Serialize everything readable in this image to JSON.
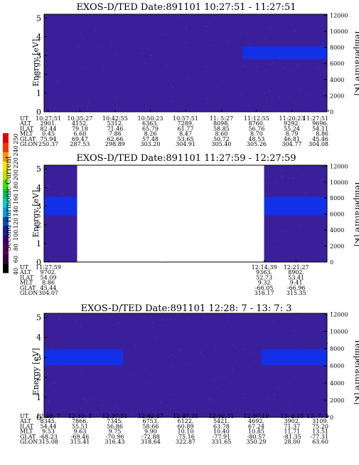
{
  "colorbar": {
    "label": "Second Harmonic Current",
    "ticks": [
      "40",
      "60",
      "80",
      "100",
      "120",
      "140",
      "160",
      "180",
      "200",
      "220",
      "240",
      "250"
    ],
    "colors": [
      "#000000",
      "#3a003a",
      "#5a005a",
      "#3c0078",
      "#1a2090",
      "#0050c8",
      "#00a0e0",
      "#00d0c0",
      "#00c060",
      "#40e000",
      "#c0e000",
      "#ffe000",
      "#ff9000",
      "#ff3000",
      "#e00000"
    ]
  },
  "panels": [
    {
      "title": "EXOS-D/TED   Date:891101  10:27:51 - 11:27:51",
      "ylabel": "Energy [eV]",
      "y2label": "Temperature [K]",
      "yticks": [
        "0",
        "1",
        "2",
        "3",
        "4",
        "5"
      ],
      "y2ticks": [
        "0",
        "2000",
        "4000",
        "6000",
        "8000",
        "10000",
        "12000"
      ],
      "rows": [
        {
          "label": "UT",
          "values": [
            "10:27:51",
            "10:35:27",
            "10:42:55",
            "10:50:23",
            "10:57:51",
            "11: 5:27",
            "11:12:55",
            "11:20:23",
            "11:27:51"
          ]
        },
        {
          "label": "ALT",
          "values": [
            "2901.",
            "4152.",
            "5312.",
            "6363.",
            "7289.",
            "8098.",
            "8760.",
            "9292.",
            "9696."
          ]
        },
        {
          "label": "ILAT",
          "values": [
            "82.44",
            "79.18",
            "71.46",
            "65.79",
            "61.77",
            "58.85",
            "56.76",
            "55.24",
            "54.11"
          ]
        },
        {
          "label": "MLT",
          "values": [
            "0.45",
            "6.60",
            "7.86",
            "8.26",
            "8.47",
            "8.60",
            "8.70",
            "8.79",
            "8.86"
          ]
        },
        {
          "label": "GLAT",
          "values": [
            "75.94",
            "69.47",
            "62.66",
            "57.48",
            "53.65",
            "50.72",
            "48.53",
            "46.81",
            "45.46"
          ]
        },
        {
          "label": "GLON",
          "values": [
            "250.37",
            "287.53",
            "298.89",
            "303.20",
            "304.91",
            "305.40",
            "305.26",
            "304.77",
            "304.08"
          ]
        }
      ],
      "chart_data": {
        "type": "heatmap",
        "x_label": "UT",
        "x_range": [
          "10:27:51",
          "11:27:51"
        ],
        "y_range": [
          0,
          5.2
        ],
        "y2_range": [
          0,
          12000
        ],
        "background_level": "80-100",
        "features": [
          {
            "time_range": [
              "11:10",
              "11:27:51"
            ],
            "energy_range": [
              2.8,
              3.5
            ],
            "level": "120-140"
          }
        ]
      }
    },
    {
      "title": "EXOS-D/TED   Date:891101  11:27:59 - 12:27:59",
      "ylabel": "Energy [eV]",
      "y2label": "Temperature [K]",
      "yticks": [
        "0",
        "1",
        "2",
        "3",
        "4",
        "5"
      ],
      "y2ticks": [
        "0",
        "2000",
        "4000",
        "6000",
        "8000",
        "10000",
        "12000"
      ],
      "rows": [
        {
          "label": "UT",
          "values": [
            "11:27:59",
            "12:14:39",
            "12:21:27"
          ]
        },
        {
          "label": "ALT",
          "values": [
            "9702.",
            "9363.",
            "8902."
          ]
        },
        {
          "label": "ILAT",
          "values": [
            "54.09",
            "52.73",
            "53.41"
          ]
        },
        {
          "label": "MLT",
          "values": [
            "8.86",
            "9.32",
            "9.41"
          ]
        },
        {
          "label": "GLAT",
          "values": [
            "45.44",
            "-66.05",
            "-66.96"
          ]
        },
        {
          "label": "GLON",
          "values": [
            "304.07",
            "316.17",
            "315.35"
          ]
        }
      ],
      "chart_data": {
        "type": "heatmap",
        "x_label": "UT",
        "x_range": [
          "11:27:59",
          "12:27:59"
        ],
        "y_range": [
          0,
          5.2
        ],
        "y2_range": [
          0,
          12000
        ],
        "data_gap": [
          "11:35",
          "12:14:39"
        ],
        "background_level": "80-100",
        "features": [
          {
            "time_range": [
              "11:27:59",
              "11:35"
            ],
            "energy_range": [
              2.5,
              3.5
            ],
            "level": "120-140"
          },
          {
            "time_range": [
              "12:14:39",
              "12:27:59"
            ],
            "energy_range": [
              2.5,
              3.5
            ],
            "level": "120-140"
          }
        ]
      }
    },
    {
      "title": "EXOS-D/TED   Date:891101  12:28: 7 - 13: 7: 3",
      "ylabel": "Energy [eV]",
      "y2label": "Temperature [K]",
      "yticks": [
        "0",
        "1",
        "2",
        "3",
        "4",
        "5"
      ],
      "y2ticks": [
        "0",
        "2000",
        "4000",
        "6000",
        "8000",
        "10000",
        "12000"
      ],
      "rows": [
        {
          "label": "UT",
          "values": [
            "12:28: 7",
            "12:33: 3",
            "12:37:51",
            "12:42:47",
            "12:47:35",
            "12:52:31",
            "12:57:19",
            "13: 2:15",
            "13: 7: 3"
          ]
        },
        {
          "label": "ALT",
          "values": [
            "8345.",
            "7866.",
            "7345.",
            "6753.",
            "6122.",
            "5421.",
            "4692.",
            "3902.",
            "3109."
          ]
        },
        {
          "label": "ILAT",
          "values": [
            "54.44",
            "55.51",
            "56.86",
            "58.66",
            "60.89",
            "63.78",
            "67.24",
            "71.37",
            "75.20"
          ]
        },
        {
          "label": "MLT",
          "values": [
            "9.53",
            "9.63",
            "9.75",
            "9.90",
            "10.10",
            "10.40",
            "10.85",
            "11.71",
            "13.51"
          ]
        },
        {
          "label": "GLAT",
          "values": [
            "-68.23",
            "-69.46",
            "-70.96",
            "-72.88",
            "-75.16",
            "-77.91",
            "-80.57",
            "-81.35",
            "-77.31"
          ]
        },
        {
          "label": "GLON",
          "values": [
            "315.08",
            "315.41",
            "316.43",
            "318.64",
            "322.87",
            "331.65",
            "350.29",
            "28.00",
            "63.60"
          ]
        }
      ],
      "chart_data": {
        "type": "heatmap",
        "x_label": "UT",
        "x_range": [
          "12:28: 7",
          "13: 7: 3"
        ],
        "y_range": [
          0,
          5.2
        ],
        "y2_range": [
          0,
          12000
        ],
        "background_level": "80-100",
        "features": [
          {
            "time_range": [
              "12:28: 7",
              "12:39"
            ],
            "energy_range": [
              2.6,
              3.4
            ],
            "level": "120-140"
          },
          {
            "time_range": [
              "12:58",
              "13: 7: 3"
            ],
            "energy_range": [
              2.6,
              3.4
            ],
            "level": "120-140"
          }
        ]
      }
    }
  ]
}
